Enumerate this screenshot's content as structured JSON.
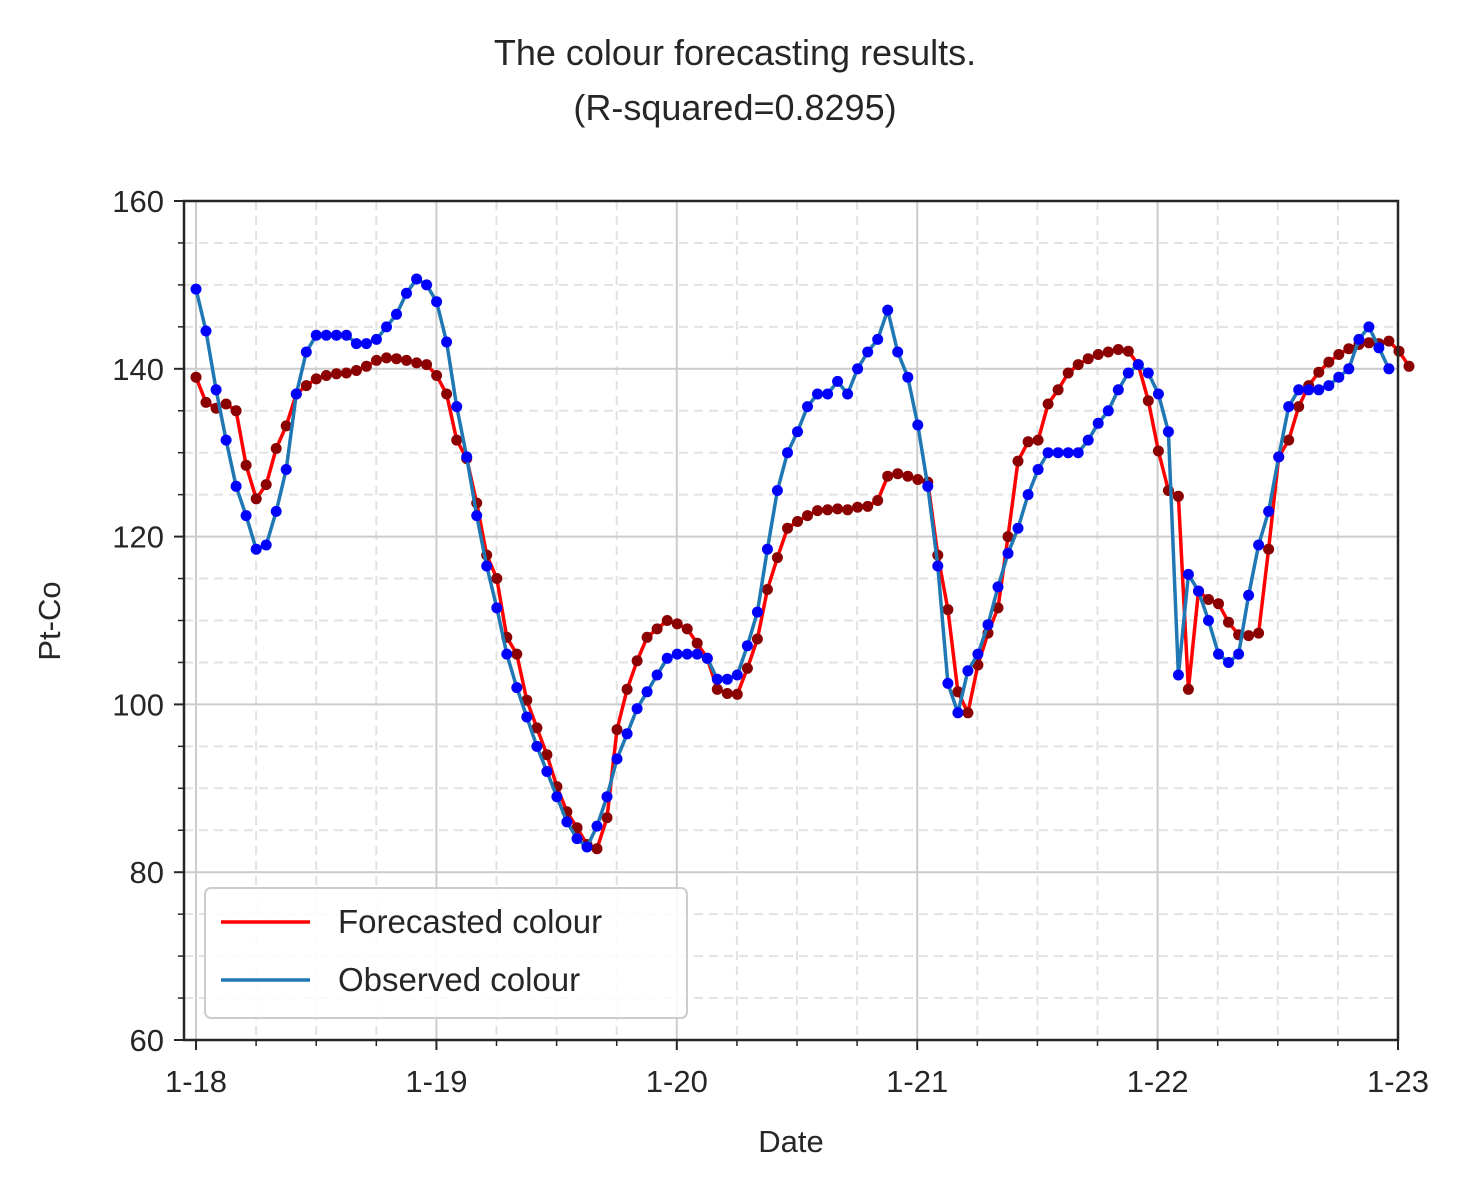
{
  "chart_data": {
    "type": "line",
    "title_line1": "The colour forecasting results.",
    "title_line2": "(R-squared=0.8295)",
    "xlabel": "Date",
    "ylabel": "Pt-Co",
    "ylim": [
      60,
      160
    ],
    "yticks": [
      60,
      80,
      100,
      120,
      140,
      160
    ],
    "xlim": [
      -0.05,
      5.0
    ],
    "xtick_labels": [
      "1-18",
      "1-19",
      "1-20",
      "1-21",
      "1-22",
      "1-23"
    ],
    "x_unit": "years since 1-18",
    "grid": true,
    "legend_position": "lower-left",
    "legend": [
      "Forecasted colour",
      "Observed colour"
    ],
    "x_step_per_point": 0.0417,
    "series": [
      {
        "name": "Forecasted colour",
        "color": "#ff0000",
        "marker_color": "#8b0000",
        "values": [
          139,
          136,
          135.3,
          135.8,
          135,
          128.5,
          124.5,
          126.2,
          130.5,
          133.2,
          137,
          138,
          138.8,
          139.2,
          139.4,
          139.5,
          139.8,
          140.3,
          141,
          141.3,
          141.2,
          141,
          140.7,
          140.5,
          139.2,
          137,
          131.5,
          129.3,
          124,
          117.8,
          115,
          108,
          106,
          100.5,
          97.2,
          94,
          90.2,
          87.2,
          85.3,
          83.3,
          82.8,
          86.5,
          97,
          101.8,
          105.2,
          108,
          109,
          110,
          109.6,
          109,
          107.3,
          105.5,
          101.8,
          101.3,
          101.2,
          104.3,
          107.8,
          113.7,
          117.5,
          121,
          121.8,
          122.5,
          123.1,
          123.2,
          123.3,
          123.2,
          123.5,
          123.6,
          124.3,
          127.2,
          127.5,
          127.2,
          126.8,
          126.5,
          117.8,
          111.3,
          101.5,
          99,
          104.7,
          108.5,
          111.5,
          120,
          129,
          131.3,
          131.5,
          135.8,
          137.5,
          139.5,
          140.5,
          141.2,
          141.7,
          142,
          142.3,
          142.1,
          140.5,
          136.2,
          130.2,
          125.5,
          124.8,
          101.8,
          113.5,
          112.5,
          112,
          109.8,
          108.3,
          108.2,
          108.5,
          118.5,
          129.5,
          131.5,
          135.5,
          138,
          139.6,
          140.8,
          141.7,
          142.4,
          142.9,
          143.1,
          143,
          143.3,
          142.1,
          140.3
        ]
      },
      {
        "name": "Observed colour",
        "color": "#1f77b4",
        "marker_color": "#0000ff",
        "values": [
          149.5,
          144.5,
          137.5,
          131.5,
          126,
          122.5,
          118.5,
          119,
          123,
          128,
          137,
          142,
          144,
          144,
          144,
          144,
          143,
          143,
          143.5,
          145,
          146.5,
          149,
          150.7,
          150,
          148,
          143.2,
          135.5,
          129.5,
          122.5,
          116.5,
          111.5,
          106,
          102,
          98.5,
          95,
          92,
          89,
          86,
          84,
          83,
          85.5,
          89,
          93.5,
          96.5,
          99.5,
          101.5,
          103.5,
          105.5,
          106,
          106,
          106,
          105.5,
          103,
          103,
          103.5,
          107,
          111,
          118.5,
          125.5,
          130,
          132.5,
          135.5,
          137,
          137,
          138.5,
          137,
          140,
          142,
          143.5,
          147,
          142,
          139,
          133.3,
          126,
          116.5,
          102.5,
          99,
          104,
          106,
          109.5,
          114,
          118,
          121,
          125,
          128,
          130,
          130,
          130,
          130,
          131.5,
          133.5,
          135,
          137.5,
          139.5,
          140.5,
          139.5,
          137,
          132.5,
          103.5,
          115.5,
          113.5,
          110,
          106,
          105,
          106,
          113,
          119,
          123,
          129.5,
          135.5,
          137.5,
          137.5,
          137.5,
          138,
          139,
          140,
          143.5,
          145,
          142.5,
          140
        ]
      }
    ]
  }
}
